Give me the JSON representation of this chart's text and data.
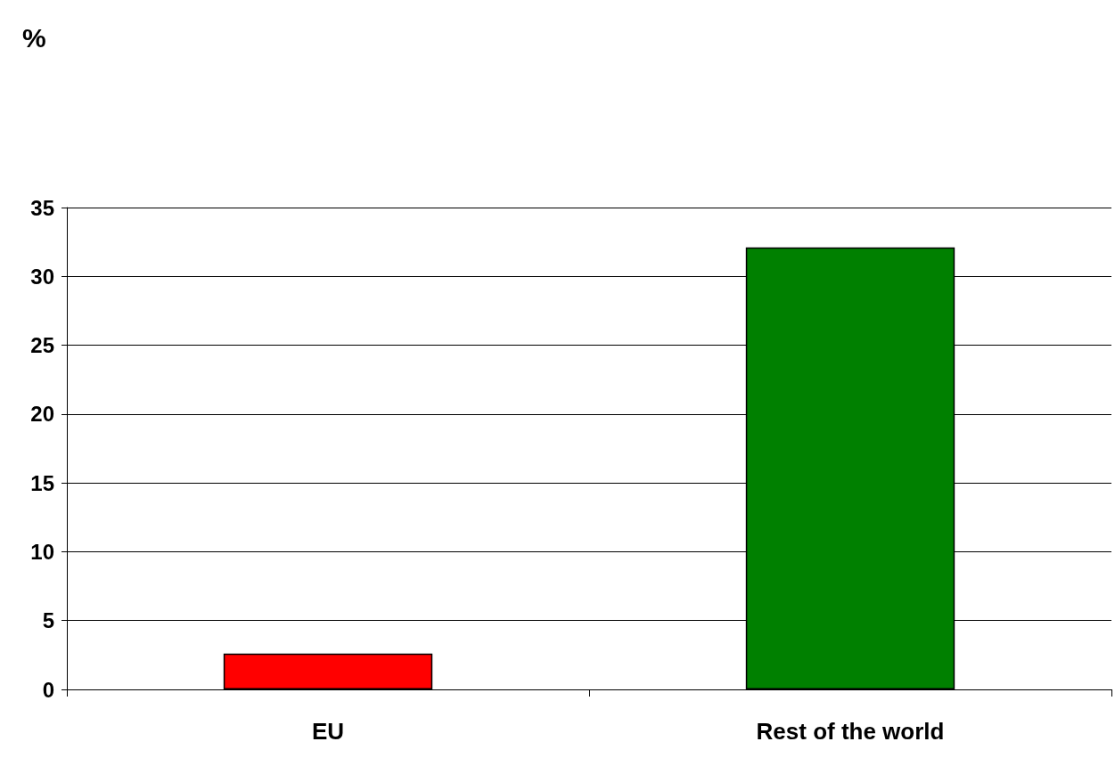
{
  "chart_data": {
    "type": "bar",
    "annotations": [
      "%"
    ],
    "categories": [
      "EU",
      "Rest of the world"
    ],
    "values": [
      2.6,
      32.1
    ],
    "colors": [
      "#ff0000",
      "#008000"
    ],
    "ylim": [
      0,
      35
    ],
    "yticks": [
      0,
      5,
      10,
      15,
      20,
      25,
      30,
      35
    ],
    "grid": "y"
  }
}
